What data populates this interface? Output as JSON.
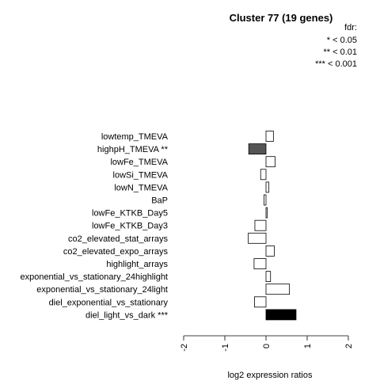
{
  "chart_data": {
    "type": "bar",
    "orientation": "horizontal",
    "title": "Cluster 77 (19 genes)",
    "xlabel": "log2 expression ratios",
    "xlim": [
      -2,
      2
    ],
    "xticks": [
      "-2",
      "-1",
      "0",
      "1",
      "2"
    ],
    "legend": {
      "title": "fdr:",
      "entries": [
        "* < 0.05",
        "** < 0.01",
        "*** < 0.001"
      ],
      "position": "top-right"
    },
    "categories": [
      "lowtemp_TMEVA",
      "highpH_TMEVA **",
      "lowFe_TMEVA",
      "lowSi_TMEVA",
      "lowN_TMEVA",
      "BaP",
      "lowFe_KTKB_Day5",
      "lowFe_KTKB_Day3",
      "co2_elevated_stat_arrays",
      "co2_elevated_expo_arrays",
      "highlight_arrays",
      "exponential_vs_stationary_24highlight",
      "exponential_vs_stationary_24light",
      "diel_exponential_vs_stationary",
      "diel_light_vs_dark ***"
    ],
    "values": [
      0.18,
      -0.42,
      0.22,
      -0.13,
      0.07,
      -0.05,
      0.03,
      -0.27,
      -0.43,
      0.2,
      -0.29,
      0.11,
      0.57,
      -0.28,
      0.73
    ],
    "fills": [
      "#ffffff",
      "#555555",
      "#ffffff",
      "#ffffff",
      "#ffffff",
      "#ffffff",
      "#ffffff",
      "#ffffff",
      "#ffffff",
      "#ffffff",
      "#ffffff",
      "#ffffff",
      "#ffffff",
      "#ffffff",
      "#000000"
    ]
  }
}
